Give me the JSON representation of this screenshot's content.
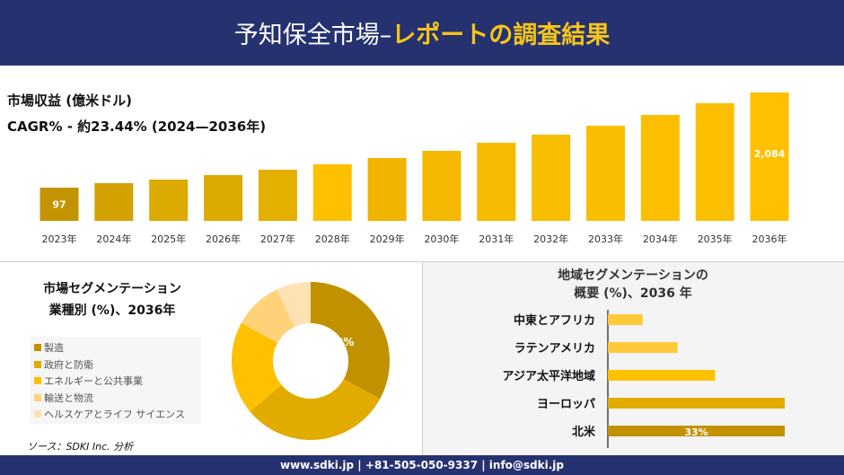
{
  "header": {
    "title_part1": "予知保全市場–",
    "title_part2": "レポートの調査結果"
  },
  "footer": {
    "contact": "www.sdki.jp | +81-505-050-9337 | info@sdki.jp"
  },
  "source": "ソース：SDKI Inc. 分析",
  "chart_data": [
    {
      "type": "bar",
      "title": "市場収益 (億米ドル)",
      "subtitle": "CAGR% - 約23.44% (2024—2036年)",
      "categories": [
        "2023年",
        "2024年",
        "2025年",
        "2026年",
        "2027年",
        "2028年",
        "2029年",
        "2030年",
        "2031年",
        "2032年",
        "2033年",
        "2034年",
        "2035年",
        "2036年"
      ],
      "values": [
        97,
        191,
        266,
        360,
        472,
        585,
        716,
        866,
        1035,
        1204,
        1391,
        1615,
        1861,
        2084
      ],
      "data_labels": {
        "0": "97",
        "13": "2,084"
      },
      "colors": [
        "#c49400",
        "#d4a200",
        "#dcaa00",
        "#dcaa00",
        "#e4b000",
        "#ffc000",
        "#f0b400",
        "#f4b800",
        "#f6ba00",
        "#f8bc00",
        "#fabe00",
        "#fbbf00",
        "#fcbf00",
        "#ffc000"
      ],
      "grid": false
    },
    {
      "type": "pie",
      "title": "市場セグメンテーション 業種別 (%)、2036年",
      "title_line1": "市場セグメンテーション",
      "title_line2": "業種別 (%)、2036年",
      "categories": [
        "製造",
        "政府と防衛",
        "エネルギーと公共事業",
        "輸送と物流",
        "ヘルスケアとライフ サイエンス"
      ],
      "values": [
        33,
        31,
        19,
        10,
        7
      ],
      "colors": [
        "#c29100",
        "#e2ab00",
        "#ffc000",
        "#ffd27a",
        "#ffe2b3"
      ],
      "data_labels": {
        "0": "33%"
      },
      "legend": "left"
    },
    {
      "type": "bar",
      "orientation": "horizontal",
      "title_line1": "地域セグメンテーションの",
      "title_line2": "概要 (%)、2036 年",
      "categories": [
        "中東とアフリカ",
        "ラテンアメリカ",
        "アジア太平洋地域",
        "ヨーロッパ",
        "北米"
      ],
      "values": [
        6.5,
        13,
        20,
        33,
        33
      ],
      "colors": [
        "#ffc93a",
        "#ffc93a",
        "#ffc000",
        "#e2ab00",
        "#c29100"
      ],
      "data_labels": {
        "4": "33%"
      }
    }
  ]
}
